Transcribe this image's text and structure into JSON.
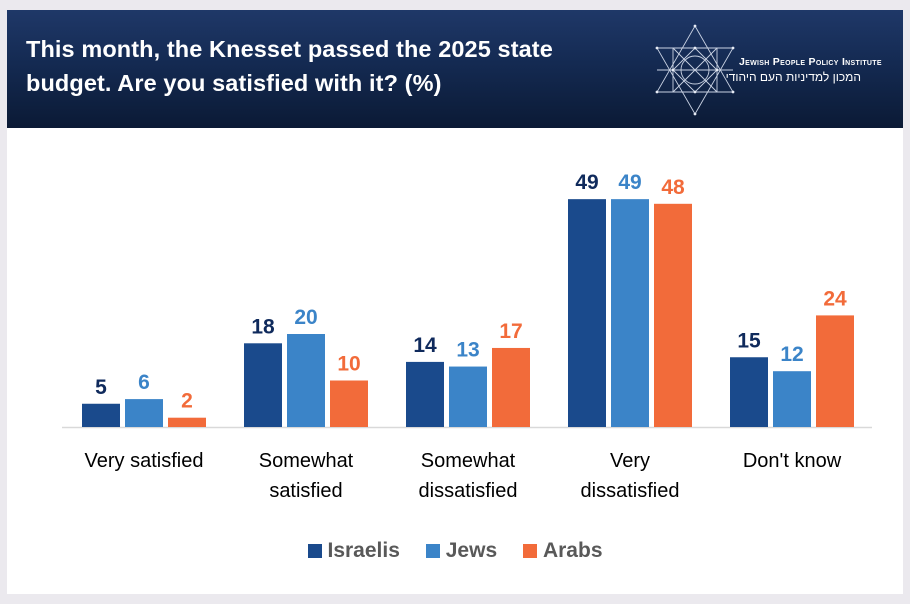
{
  "header": {
    "title_line1": "This month, the Knesset passed the 2025 state",
    "title_line2": "budget. Are you satisfied with it? (%)",
    "logo": {
      "icon": "star-of-david-icon",
      "name_en": "Jewish People Policy Institute",
      "name_he": "המכון למדיניות העם היהודי"
    }
  },
  "colors": {
    "Israelis": "#1a4a8c",
    "Jews": "#3b84c8",
    "Arabs": "#f26b3a",
    "label_Israelis": "#0f2a5c",
    "header_bg": "#142a52",
    "axis": "#d9d9d9",
    "category_text": "#000000",
    "legend_text": "#595959"
  },
  "chart_data": {
    "type": "bar",
    "title": "This month, the Knesset passed the 2025 state budget. Are you satisfied with it? (%)",
    "xlabel": "",
    "ylabel": "",
    "ylim": [
      0,
      50
    ],
    "grid": false,
    "legend_position": "bottom",
    "categories": [
      [
        "Very satisfied"
      ],
      [
        "Somewhat",
        "satisfied"
      ],
      [
        "Somewhat",
        "dissatisfied"
      ],
      [
        "Very",
        "dissatisfied"
      ],
      [
        "Don't know"
      ]
    ],
    "series": [
      {
        "name": "Israelis",
        "values": [
          5,
          18,
          14,
          49,
          15
        ]
      },
      {
        "name": "Jews",
        "values": [
          6,
          20,
          13,
          49,
          12
        ]
      },
      {
        "name": "Arabs",
        "values": [
          2,
          10,
          17,
          48,
          24
        ]
      }
    ]
  }
}
